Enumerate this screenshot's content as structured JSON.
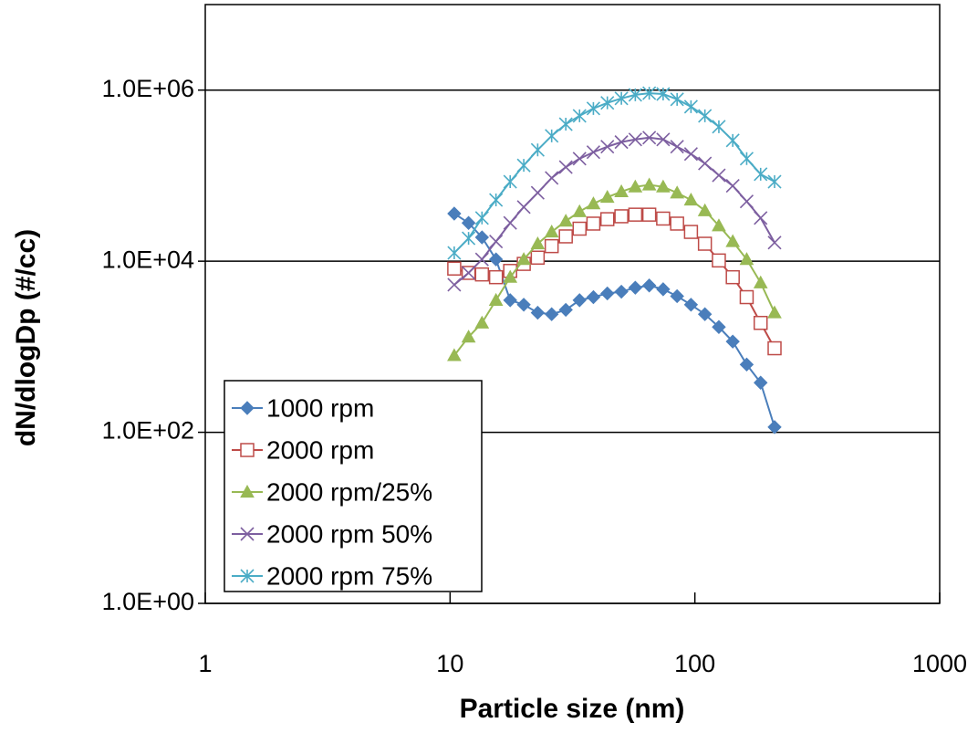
{
  "chart_data": {
    "type": "scatter",
    "x_label": "Particle size (nm)",
    "y_label": "dN/dlogDp (#/cc)",
    "log_x": true,
    "log_y": true,
    "grid": true,
    "legend_position": "lower left",
    "xlim": [
      1,
      1000
    ],
    "ylim": [
      1,
      10000000
    ],
    "xticks": [
      1,
      10,
      100,
      1000
    ],
    "yticks": [
      {
        "value": 1,
        "label": "1.0E+00"
      },
      {
        "value": 100,
        "label": "1.0E+02"
      },
      {
        "value": 10000,
        "label": "1.0E+04"
      },
      {
        "value": 1000000,
        "label": "1.0E+06"
      }
    ],
    "x": [
      10.4,
      11.9,
      13.5,
      15.4,
      17.6,
      20.0,
      22.8,
      26.0,
      29.7,
      33.8,
      38.5,
      43.9,
      50.1,
      57.1,
      65.1,
      74.2,
      84.6,
      96.4,
      109.9,
      125.3,
      142.8,
      162.8,
      185.6,
      211.6
    ],
    "series": [
      {
        "name": "1000 rpm",
        "color": "#4a7ebb",
        "marker": "diamond",
        "values": [
          36000,
          28000,
          19000,
          10500,
          3500,
          3100,
          2500,
          2400,
          2700,
          3500,
          3800,
          4200,
          4400,
          4900,
          5200,
          4700,
          3900,
          3100,
          2400,
          1700,
          1150,
          620,
          380,
          115
        ]
      },
      {
        "name": "2000 rpm",
        "color": "#be4b48",
        "marker": "square",
        "values": [
          8200,
          7300,
          7000,
          6500,
          7700,
          9300,
          11000,
          15000,
          19500,
          24000,
          27500,
          31000,
          33500,
          35000,
          35000,
          31500,
          27500,
          22000,
          16000,
          10200,
          6500,
          3800,
          1900,
          960
        ]
      },
      {
        "name": "2000 rpm/25%",
        "color": "#98b954",
        "marker": "triangle",
        "values": [
          790,
          1300,
          1900,
          3500,
          6500,
          10500,
          16000,
          22000,
          29500,
          38000,
          47000,
          56000,
          65000,
          74000,
          78000,
          74000,
          63000,
          52000,
          39000,
          26000,
          17000,
          10500,
          5600,
          2500
        ]
      },
      {
        "name": "2000 rpm 50%",
        "color": "#7d5fa0",
        "marker": "x",
        "values": [
          5300,
          7300,
          10500,
          17000,
          28000,
          43000,
          63000,
          94000,
          126000,
          158000,
          188000,
          218000,
          247000,
          265000,
          278000,
          265000,
          218000,
          179000,
          139000,
          101000,
          76000,
          50000,
          32000,
          16500
        ]
      },
      {
        "name": "2000 rpm 75%",
        "color": "#4bacc6",
        "marker": "star",
        "values": [
          12500,
          18500,
          32000,
          52000,
          85000,
          132000,
          200000,
          292000,
          400000,
          500000,
          610000,
          710000,
          800000,
          880000,
          920000,
          900000,
          780000,
          640000,
          500000,
          373000,
          258000,
          158000,
          104000,
          85000
        ]
      }
    ]
  }
}
